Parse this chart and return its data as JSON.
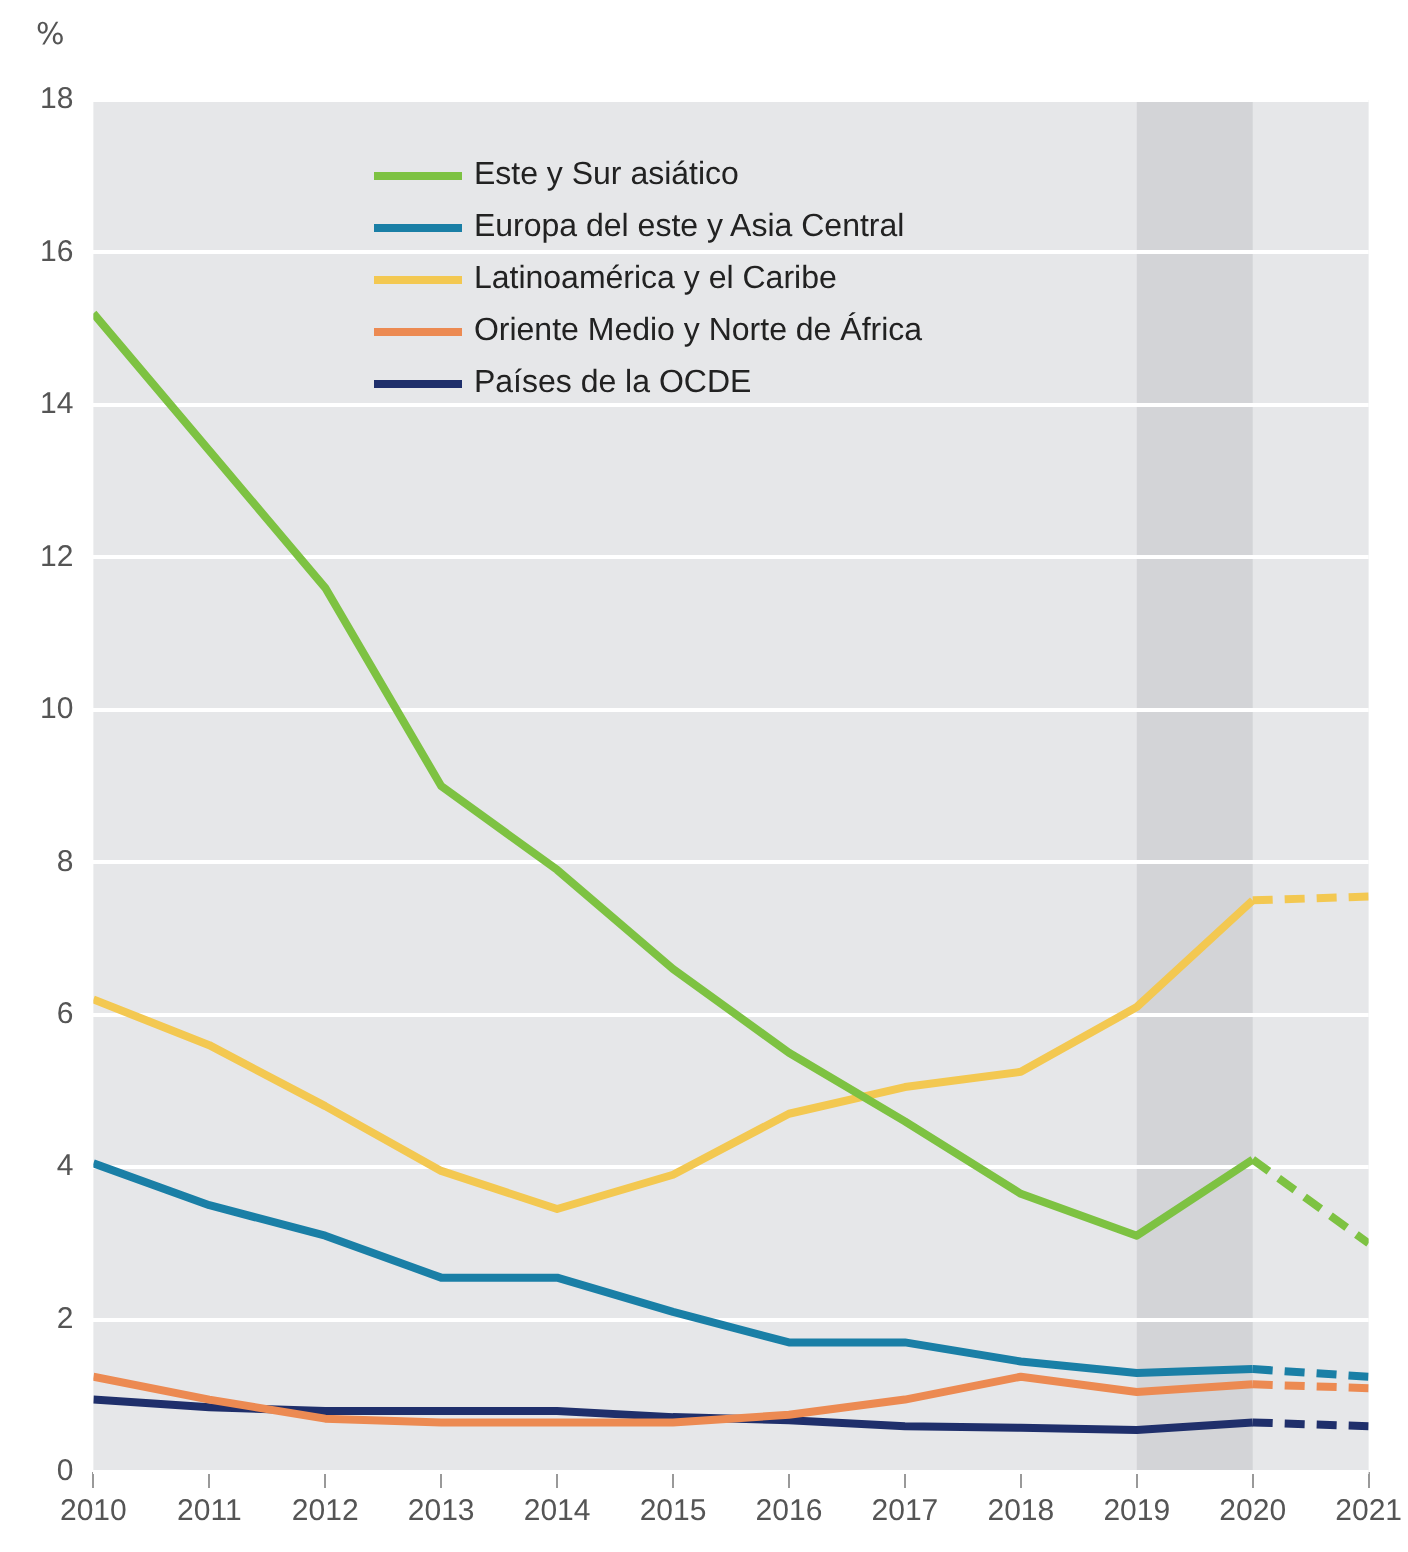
{
  "chart_data": {
    "type": "line",
    "ylabel": "%",
    "x": [
      2010,
      2011,
      2012,
      2013,
      2014,
      2015,
      2016,
      2017,
      2018,
      2019,
      2020,
      2021
    ],
    "xlim": [
      2010,
      2021
    ],
    "xticks": [
      2010,
      2011,
      2012,
      2013,
      2014,
      2015,
      2016,
      2017,
      2018,
      2019,
      2020,
      2021
    ],
    "ylim": [
      0,
      18
    ],
    "yticks": [
      0,
      2,
      4,
      6,
      8,
      10,
      12,
      14,
      16,
      18
    ],
    "grid": "y",
    "legend": "top",
    "marker": "none",
    "bands": [
      {
        "axis": "x",
        "from": 2019,
        "to": 2020,
        "color": "#d3d4d7"
      }
    ],
    "series": [
      {
        "name": "Este y Sur asiático",
        "color": "#7dc242",
        "line_style": "solid",
        "values": [
          15.2,
          13.4,
          11.6,
          9.0,
          7.9,
          6.6,
          5.5,
          4.6,
          3.65,
          3.1,
          4.1,
          null
        ]
      },
      {
        "name": "Europa del este y Asia Central",
        "color": "#1a7fa6",
        "line_style": "solid",
        "values": [
          4.05,
          3.5,
          3.1,
          2.55,
          2.55,
          2.1,
          1.7,
          1.7,
          1.45,
          1.3,
          1.35,
          null
        ]
      },
      {
        "name": "Latinoamérica y el Caribe",
        "color": "#f3c851",
        "line_style": "solid",
        "values": [
          6.2,
          5.6,
          4.8,
          3.95,
          3.45,
          3.9,
          4.7,
          5.05,
          5.25,
          6.1,
          7.5,
          null
        ]
      },
      {
        "name": "Oriente Medio y Norte de África",
        "color": "#ec8a52",
        "line_style": "solid",
        "values": [
          1.25,
          0.95,
          0.7,
          0.65,
          0.65,
          0.65,
          0.75,
          0.95,
          1.25,
          1.05,
          1.15,
          null
        ]
      },
      {
        "name": "Países de la OCDE",
        "color": "#1f2f6b",
        "line_style": "solid",
        "values": [
          0.95,
          0.85,
          0.8,
          0.8,
          0.8,
          0.72,
          0.68,
          0.6,
          0.58,
          0.55,
          0.65,
          null
        ]
      },
      {
        "color": "#7dc242",
        "line_style": "dashed",
        "values": [
          null,
          null,
          null,
          null,
          null,
          null,
          null,
          null,
          null,
          null,
          4.1,
          3.0
        ]
      },
      {
        "color": "#1a7fa6",
        "line_style": "dashed",
        "values": [
          null,
          null,
          null,
          null,
          null,
          null,
          null,
          null,
          null,
          null,
          1.35,
          1.25
        ]
      },
      {
        "color": "#f3c851",
        "line_style": "dashed",
        "values": [
          null,
          null,
          null,
          null,
          null,
          null,
          null,
          null,
          null,
          null,
          7.5,
          7.55
        ]
      },
      {
        "color": "#ec8a52",
        "line_style": "dashed",
        "values": [
          null,
          null,
          null,
          null,
          null,
          null,
          null,
          null,
          null,
          null,
          1.15,
          1.1
        ]
      },
      {
        "color": "#1f2f6b",
        "line_style": "dashed",
        "values": [
          null,
          null,
          null,
          null,
          null,
          null,
          null,
          null,
          null,
          null,
          0.65,
          0.6
        ]
      }
    ]
  }
}
